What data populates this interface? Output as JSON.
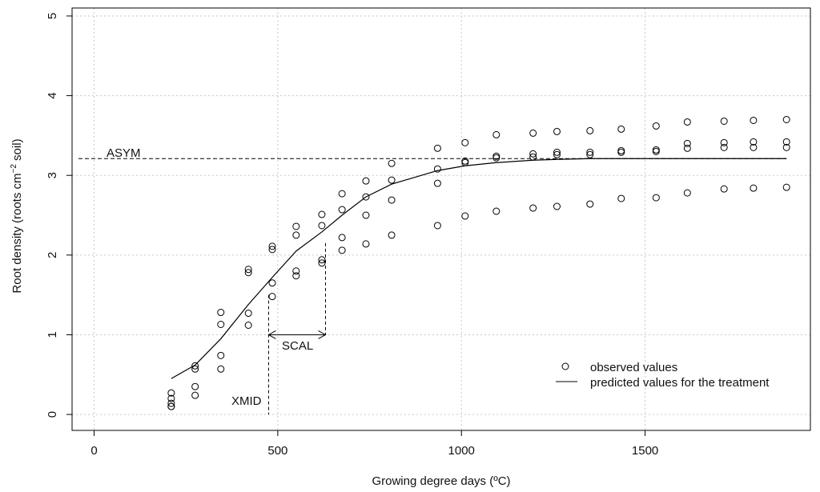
{
  "chart_data": {
    "type": "scatter",
    "xlabel": "Growing degree days (ºC)",
    "ylabel": {
      "prefix": "Root density (roots  cm",
      "sup": "−2",
      "suffix": " soil)"
    },
    "xlim": [
      -60,
      1950
    ],
    "ylim": [
      -0.2,
      5.1
    ],
    "xticks": [
      0,
      500,
      1000,
      1500
    ],
    "yticks": [
      0,
      1,
      2,
      3,
      4,
      5
    ],
    "grid": true,
    "legend_position": "bottom-right",
    "legend": {
      "observed": "observed values",
      "predicted": "predicted values for the treatment"
    },
    "annotations": {
      "asym": "ASYM",
      "scal": "SCAL",
      "xmid": "XMID"
    },
    "asym_value": 3.21,
    "xmid_value": 475,
    "scal_end": 630,
    "scal_y": 1.0,
    "scal_segment_top": 1.5,
    "scal_segment_top_right": 2.15,
    "observed": {
      "x": [
        210,
        210,
        210,
        210,
        210,
        275,
        275,
        275,
        275,
        345,
        345,
        345,
        345,
        420,
        420,
        420,
        420,
        485,
        485,
        485,
        485,
        550,
        550,
        550,
        550,
        620,
        620,
        620,
        620,
        675,
        675,
        675,
        675,
        740,
        740,
        740,
        740,
        810,
        810,
        810,
        810,
        935,
        935,
        935,
        935,
        1010,
        1010,
        1010,
        1010,
        1095,
        1095,
        1095,
        1095,
        1195,
        1195,
        1195,
        1195,
        1260,
        1260,
        1260,
        1260,
        1350,
        1350,
        1350,
        1350,
        1435,
        1435,
        1435,
        1435,
        1530,
        1530,
        1530,
        1530,
        1615,
        1615,
        1615,
        1615,
        1715,
        1715,
        1715,
        1715,
        1795,
        1795,
        1795,
        1795,
        1885,
        1885,
        1885,
        1885
      ],
      "y": [
        0.1,
        0.14,
        0.2,
        0.27,
        0.1,
        0.24,
        0.35,
        0.57,
        0.61,
        0.57,
        0.74,
        1.13,
        1.28,
        1.12,
        1.27,
        1.78,
        1.82,
        1.48,
        1.65,
        2.07,
        2.11,
        1.74,
        1.8,
        2.25,
        2.36,
        1.9,
        1.94,
        2.37,
        2.51,
        2.06,
        2.22,
        2.57,
        2.77,
        2.14,
        2.5,
        2.73,
        2.93,
        2.25,
        2.69,
        2.94,
        3.15,
        2.37,
        2.9,
        3.08,
        3.34,
        2.49,
        3.16,
        3.18,
        3.41,
        2.55,
        3.22,
        3.24,
        3.51,
        2.59,
        3.23,
        3.27,
        3.53,
        2.61,
        3.26,
        3.29,
        3.55,
        2.64,
        3.26,
        3.29,
        3.56,
        2.71,
        3.29,
        3.31,
        3.58,
        2.72,
        3.3,
        3.32,
        3.62,
        2.78,
        3.34,
        3.4,
        3.67,
        2.83,
        3.35,
        3.41,
        3.68,
        2.84,
        3.35,
        3.42,
        3.69,
        2.85,
        3.35,
        3.42,
        3.7
      ]
    },
    "predicted": {
      "x": [
        210,
        275,
        345,
        420,
        485,
        550,
        620,
        675,
        740,
        810,
        935,
        1010,
        1095,
        1195,
        1260,
        1350,
        1435,
        1530,
        1615,
        1715,
        1795,
        1885
      ],
      "y": [
        0.45,
        0.62,
        0.95,
        1.38,
        1.72,
        2.05,
        2.29,
        2.5,
        2.73,
        2.89,
        3.06,
        3.12,
        3.16,
        3.19,
        3.2,
        3.21,
        3.21,
        3.21,
        3.21,
        3.21,
        3.21,
        3.21
      ]
    }
  }
}
